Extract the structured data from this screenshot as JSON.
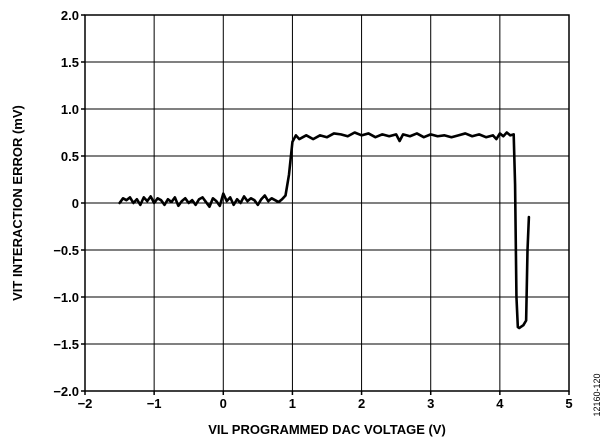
{
  "chart_data": {
    "type": "line",
    "title": "",
    "xlabel": "VIL PROGRAMMED DAC VOLTAGE (V)",
    "ylabel": "VIT INTERACTION ERROR (mV)",
    "xlim": [
      -2,
      5
    ],
    "ylim": [
      -2.0,
      2.0
    ],
    "x_ticks": [
      -2,
      -1,
      0,
      1,
      2,
      3,
      4,
      5
    ],
    "x_tick_labels": [
      "−2",
      "−1",
      "0",
      "1",
      "2",
      "3",
      "4",
      "5"
    ],
    "y_ticks": [
      -2.0,
      -1.5,
      -1.0,
      -0.5,
      0,
      0.5,
      1.0,
      1.5,
      2.0
    ],
    "y_tick_labels": [
      "−2.0",
      "−1.5",
      "−1.0",
      "−0.5",
      "0",
      "0.5",
      "1.0",
      "1.5",
      "2.0"
    ],
    "grid": true,
    "figure_id": "12160-120",
    "series": [
      {
        "x": [
          -1.5,
          -1.45,
          -1.4,
          -1.35,
          -1.3,
          -1.25,
          -1.2,
          -1.15,
          -1.1,
          -1.05,
          -1.0,
          -0.95,
          -0.9,
          -0.85,
          -0.8,
          -0.75,
          -0.7,
          -0.65,
          -0.6,
          -0.55,
          -0.5,
          -0.45,
          -0.4,
          -0.35,
          -0.3,
          -0.25,
          -0.2,
          -0.15,
          -0.1,
          -0.05,
          0.0,
          0.05,
          0.1,
          0.15,
          0.2,
          0.25,
          0.3,
          0.35,
          0.4,
          0.45,
          0.5,
          0.55,
          0.6,
          0.65,
          0.7,
          0.75,
          0.8,
          0.85,
          0.9,
          0.95,
          1.0,
          1.05,
          1.1,
          1.15,
          1.2,
          1.3,
          1.4,
          1.5,
          1.6,
          1.7,
          1.8,
          1.9,
          2.0,
          2.1,
          2.2,
          2.3,
          2.4,
          2.5,
          2.55,
          2.6,
          2.7,
          2.8,
          2.9,
          3.0,
          3.1,
          3.2,
          3.3,
          3.4,
          3.5,
          3.6,
          3.7,
          3.8,
          3.9,
          3.95,
          4.0,
          4.05,
          4.1,
          4.15,
          4.2,
          4.22,
          4.24,
          4.26,
          4.28,
          4.3,
          4.34,
          4.38,
          4.4,
          4.42
        ],
        "y": [
          0.0,
          0.05,
          0.03,
          0.06,
          0.0,
          0.04,
          -0.02,
          0.06,
          0.02,
          0.07,
          0.0,
          0.05,
          0.03,
          -0.02,
          0.04,
          0.01,
          0.06,
          -0.03,
          0.02,
          0.05,
          0.0,
          0.03,
          -0.02,
          0.04,
          0.06,
          0.01,
          -0.04,
          0.05,
          0.02,
          -0.03,
          0.1,
          0.02,
          0.06,
          -0.02,
          0.04,
          0.0,
          0.07,
          0.02,
          0.05,
          0.03,
          -0.02,
          0.04,
          0.08,
          0.02,
          0.05,
          0.03,
          0.01,
          0.04,
          0.08,
          0.3,
          0.65,
          0.72,
          0.68,
          0.7,
          0.72,
          0.68,
          0.72,
          0.7,
          0.74,
          0.73,
          0.71,
          0.75,
          0.72,
          0.74,
          0.7,
          0.73,
          0.71,
          0.73,
          0.66,
          0.73,
          0.71,
          0.74,
          0.7,
          0.73,
          0.71,
          0.72,
          0.7,
          0.72,
          0.74,
          0.71,
          0.73,
          0.7,
          0.72,
          0.68,
          0.74,
          0.71,
          0.75,
          0.72,
          0.73,
          0.2,
          -1.0,
          -1.32,
          -1.33,
          -1.32,
          -1.3,
          -1.25,
          -0.5,
          -0.15
        ]
      }
    ]
  }
}
